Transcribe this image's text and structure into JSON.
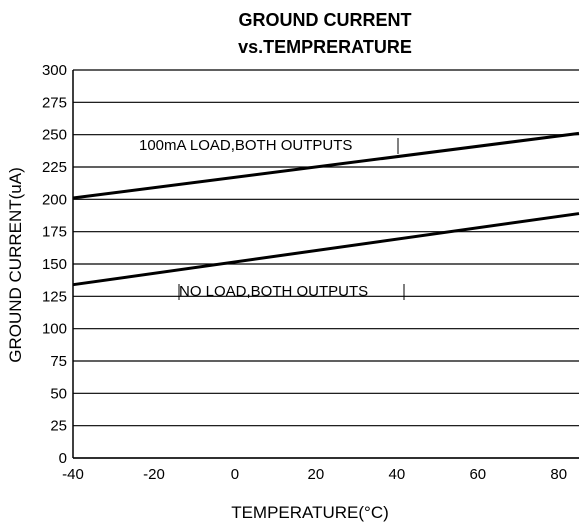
{
  "chart_data": {
    "type": "line",
    "title_line1": "GROUND CURRENT",
    "title_line2": "vs.TEMPRERATURE",
    "xlabel": "TEMPERATURE(°C)",
    "ylabel": "GROUND CURRENT(uA)",
    "xlim": [
      -40,
      85
    ],
    "ylim": [
      0,
      300
    ],
    "x_ticks": [
      -40,
      -20,
      0,
      20,
      40,
      60,
      80
    ],
    "y_ticks": [
      0,
      25,
      50,
      75,
      100,
      125,
      150,
      175,
      200,
      225,
      250,
      275,
      300
    ],
    "grid": "horizontal",
    "series": [
      {
        "name": "100mA LOAD,BOTH OUTPUTS",
        "x": [
          -40,
          85
        ],
        "y": [
          201,
          251
        ]
      },
      {
        "name": "NO LOAD,BOTH OUTPUTS",
        "x": [
          -40,
          85
        ],
        "y": [
          134,
          189
        ]
      }
    ]
  }
}
